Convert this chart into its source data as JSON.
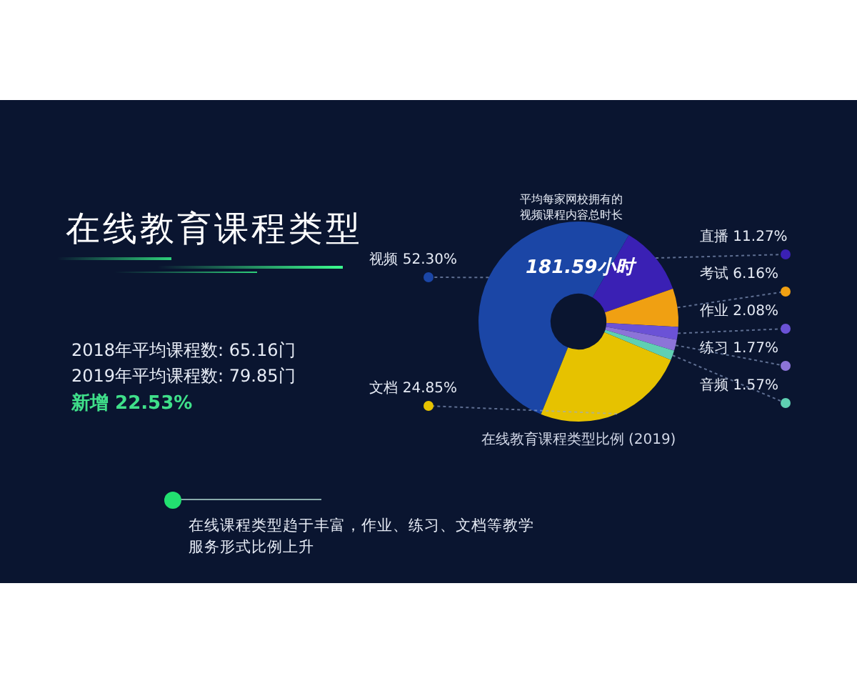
{
  "chart_data": {
    "type": "donut",
    "title": "在线教育课程类型",
    "subtitle": "在线教育课程类型比例 (2019)",
    "categories": [
      "视频",
      "直播",
      "考试",
      "作业",
      "练习",
      "音频",
      "文档"
    ],
    "values": [
      52.3,
      11.27,
      6.16,
      2.08,
      1.77,
      1.57,
      24.85
    ],
    "value_labels": [
      "52.30%",
      "11.27%",
      "6.16%",
      "2.08%",
      "1.77%",
      "1.57%",
      "24.85%"
    ],
    "colors": [
      "#1b46a6",
      "#3a20b4",
      "#f0a012",
      "#6b52d6",
      "#8c74d8",
      "#5fd0b2",
      "#e6c200"
    ],
    "legend": false,
    "annotations": [
      "平均每家网校拥有的",
      "视频课程内容总时长",
      "181.59小时",
      "2018年平均课程数: 65.16门",
      "2019年平均课程数: 79.85门",
      "新增 22.53%",
      "在线课程类型趋于丰富，作业、练习、文档等教学",
      "服务形式比例上升"
    ]
  }
}
